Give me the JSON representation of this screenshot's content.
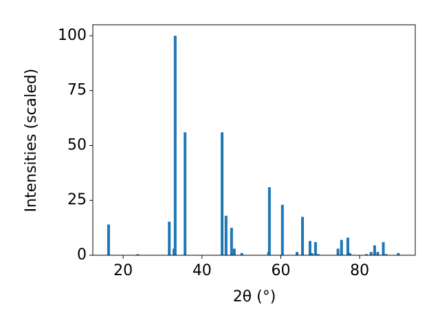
{
  "chart_data": {
    "type": "bar",
    "xlabel": "2θ (°)",
    "ylabel": "Intensities (scaled)",
    "x": [
      16.3,
      23.7,
      31.7,
      32.9,
      33.2,
      35.7,
      45.1,
      46.1,
      47.5,
      48.2,
      50.1,
      56.9,
      57.1,
      60.4,
      64.1,
      65.5,
      67.4,
      67.9,
      68.8,
      69.5,
      74.5,
      75.4,
      77.0,
      77.5,
      81.7,
      82.9,
      83.8,
      84.6,
      86.0,
      86.7,
      89.8
    ],
    "values": [
      14,
      0.5,
      15.3,
      3,
      100,
      56,
      56,
      18,
      12.5,
      3,
      1,
      1.5,
      31,
      23,
      1.5,
      17.5,
      6.5,
      1,
      6,
      0.5,
      3,
      7,
      8,
      1,
      0.5,
      1.5,
      4.5,
      1.5,
      6,
      0.5,
      1
    ],
    "color": "#1f77b4",
    "xlim": [
      12.3,
      94.1
    ],
    "xticks": [
      20,
      40,
      60,
      80
    ],
    "ylim": [
      0,
      105
    ],
    "yticks": [
      0,
      25,
      50,
      75,
      100
    ],
    "grid": false
  }
}
